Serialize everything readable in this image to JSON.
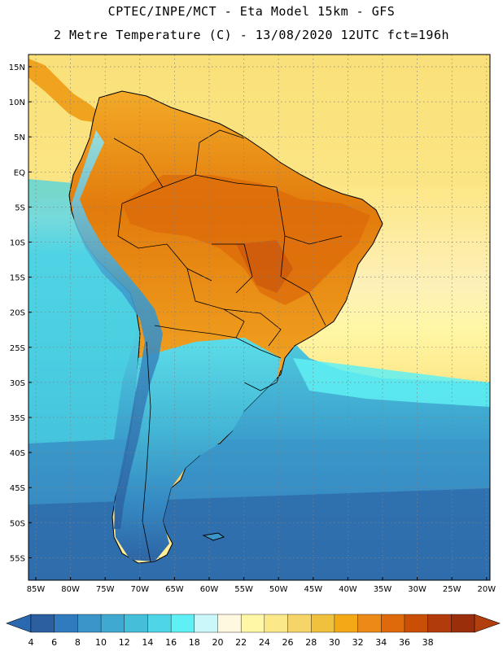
{
  "header": {
    "line1": "CPTEC/INPE/MCT -  Eta Model 15km - GFS",
    "line2": "2 Metre Temperature (C) - 13/08/2020 12UTC fct=196h"
  },
  "map": {
    "lat_labels": [
      "15N",
      "10N",
      "5N",
      "EQ",
      "5S",
      "10S",
      "15S",
      "20S",
      "25S",
      "30S",
      "35S",
      "40S",
      "45S",
      "50S",
      "55S"
    ],
    "lon_labels": [
      "85W",
      "80W",
      "75W",
      "70W",
      "65W",
      "60W",
      "55W",
      "50W",
      "45W",
      "40W",
      "35W",
      "30W",
      "25W",
      "20W"
    ]
  },
  "legend": {
    "levels": [
      "4",
      "6",
      "8",
      "10",
      "12",
      "14",
      "16",
      "18",
      "20",
      "22",
      "24",
      "26",
      "28",
      "30",
      "32",
      "34",
      "36",
      "38"
    ],
    "colors": [
      "#2b5fa0",
      "#2f7bbd",
      "#3a95c8",
      "#3fa9d1",
      "#45bfd9",
      "#4fd6e6",
      "#5ef0f4",
      "#ccf7fa",
      "#fff8e0",
      "#fff7a6",
      "#fbe889",
      "#f6d467",
      "#efc13d",
      "#f3a816",
      "#eb8a16",
      "#de6a0b",
      "#c84f05",
      "#b23b0b",
      "#9a2d0a"
    ],
    "below_color": "#2a69b0",
    "above_color": "#b23f0e"
  },
  "colors": {
    "ocean_deep": "#2f67a8",
    "ocean_mid": "#3f9ccd",
    "ocean_light": "#4fd0e3",
    "warm_sea": "#fbe17a",
    "land_hot": "#e27f0d",
    "land_warm": "#f0a31e",
    "border": "#000000",
    "grid": "#7f7f7f"
  }
}
